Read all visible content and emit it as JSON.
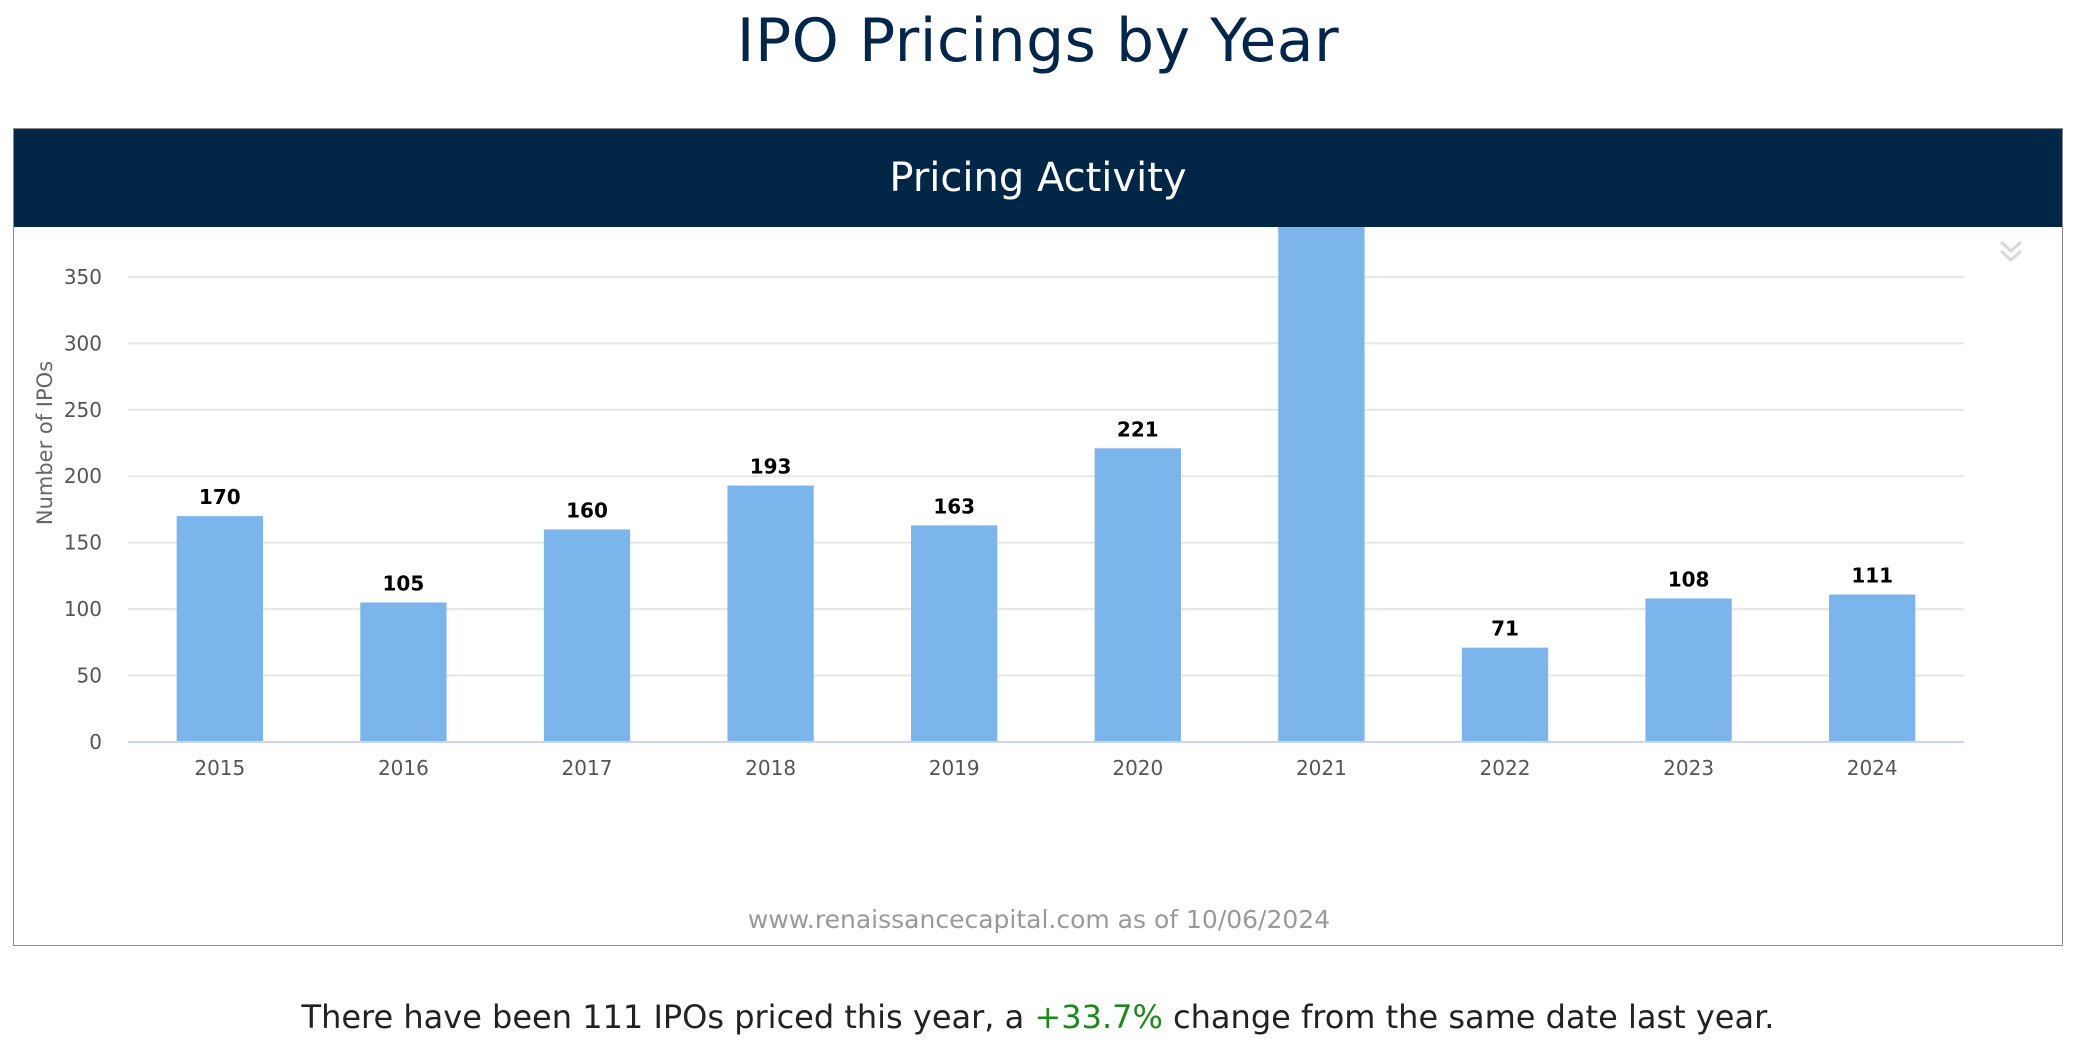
{
  "page": {
    "title": "IPO Pricings by Year"
  },
  "panel": {
    "header": "Pricing Activity",
    "menu_icon": "double-chevron-down-icon"
  },
  "chart_data": {
    "type": "bar",
    "title": "Pricing Activity",
    "categories": [
      "2015",
      "2016",
      "2017",
      "2018",
      "2019",
      "2020",
      "2021",
      "2022",
      "2023",
      "2024"
    ],
    "values": [
      170,
      105,
      160,
      193,
      163,
      221,
      397,
      71,
      108,
      111
    ],
    "ylabel": "Number of IPOs",
    "xlabel": "",
    "ylim": [
      0,
      450
    ],
    "yticks": [
      0,
      50,
      100,
      150,
      200,
      250,
      300,
      350,
      400,
      450
    ],
    "grid": true,
    "data_labels": true,
    "bar_color": "#7cb5ec",
    "credit": "www.renaissancecapital.com as of 10/06/2024"
  },
  "summary": {
    "prefix": "There have been 111 IPOs priced this year, a ",
    "change": "+33.7%",
    "suffix": " change from the same date last year.",
    "change_color": "#1d8a1d"
  }
}
